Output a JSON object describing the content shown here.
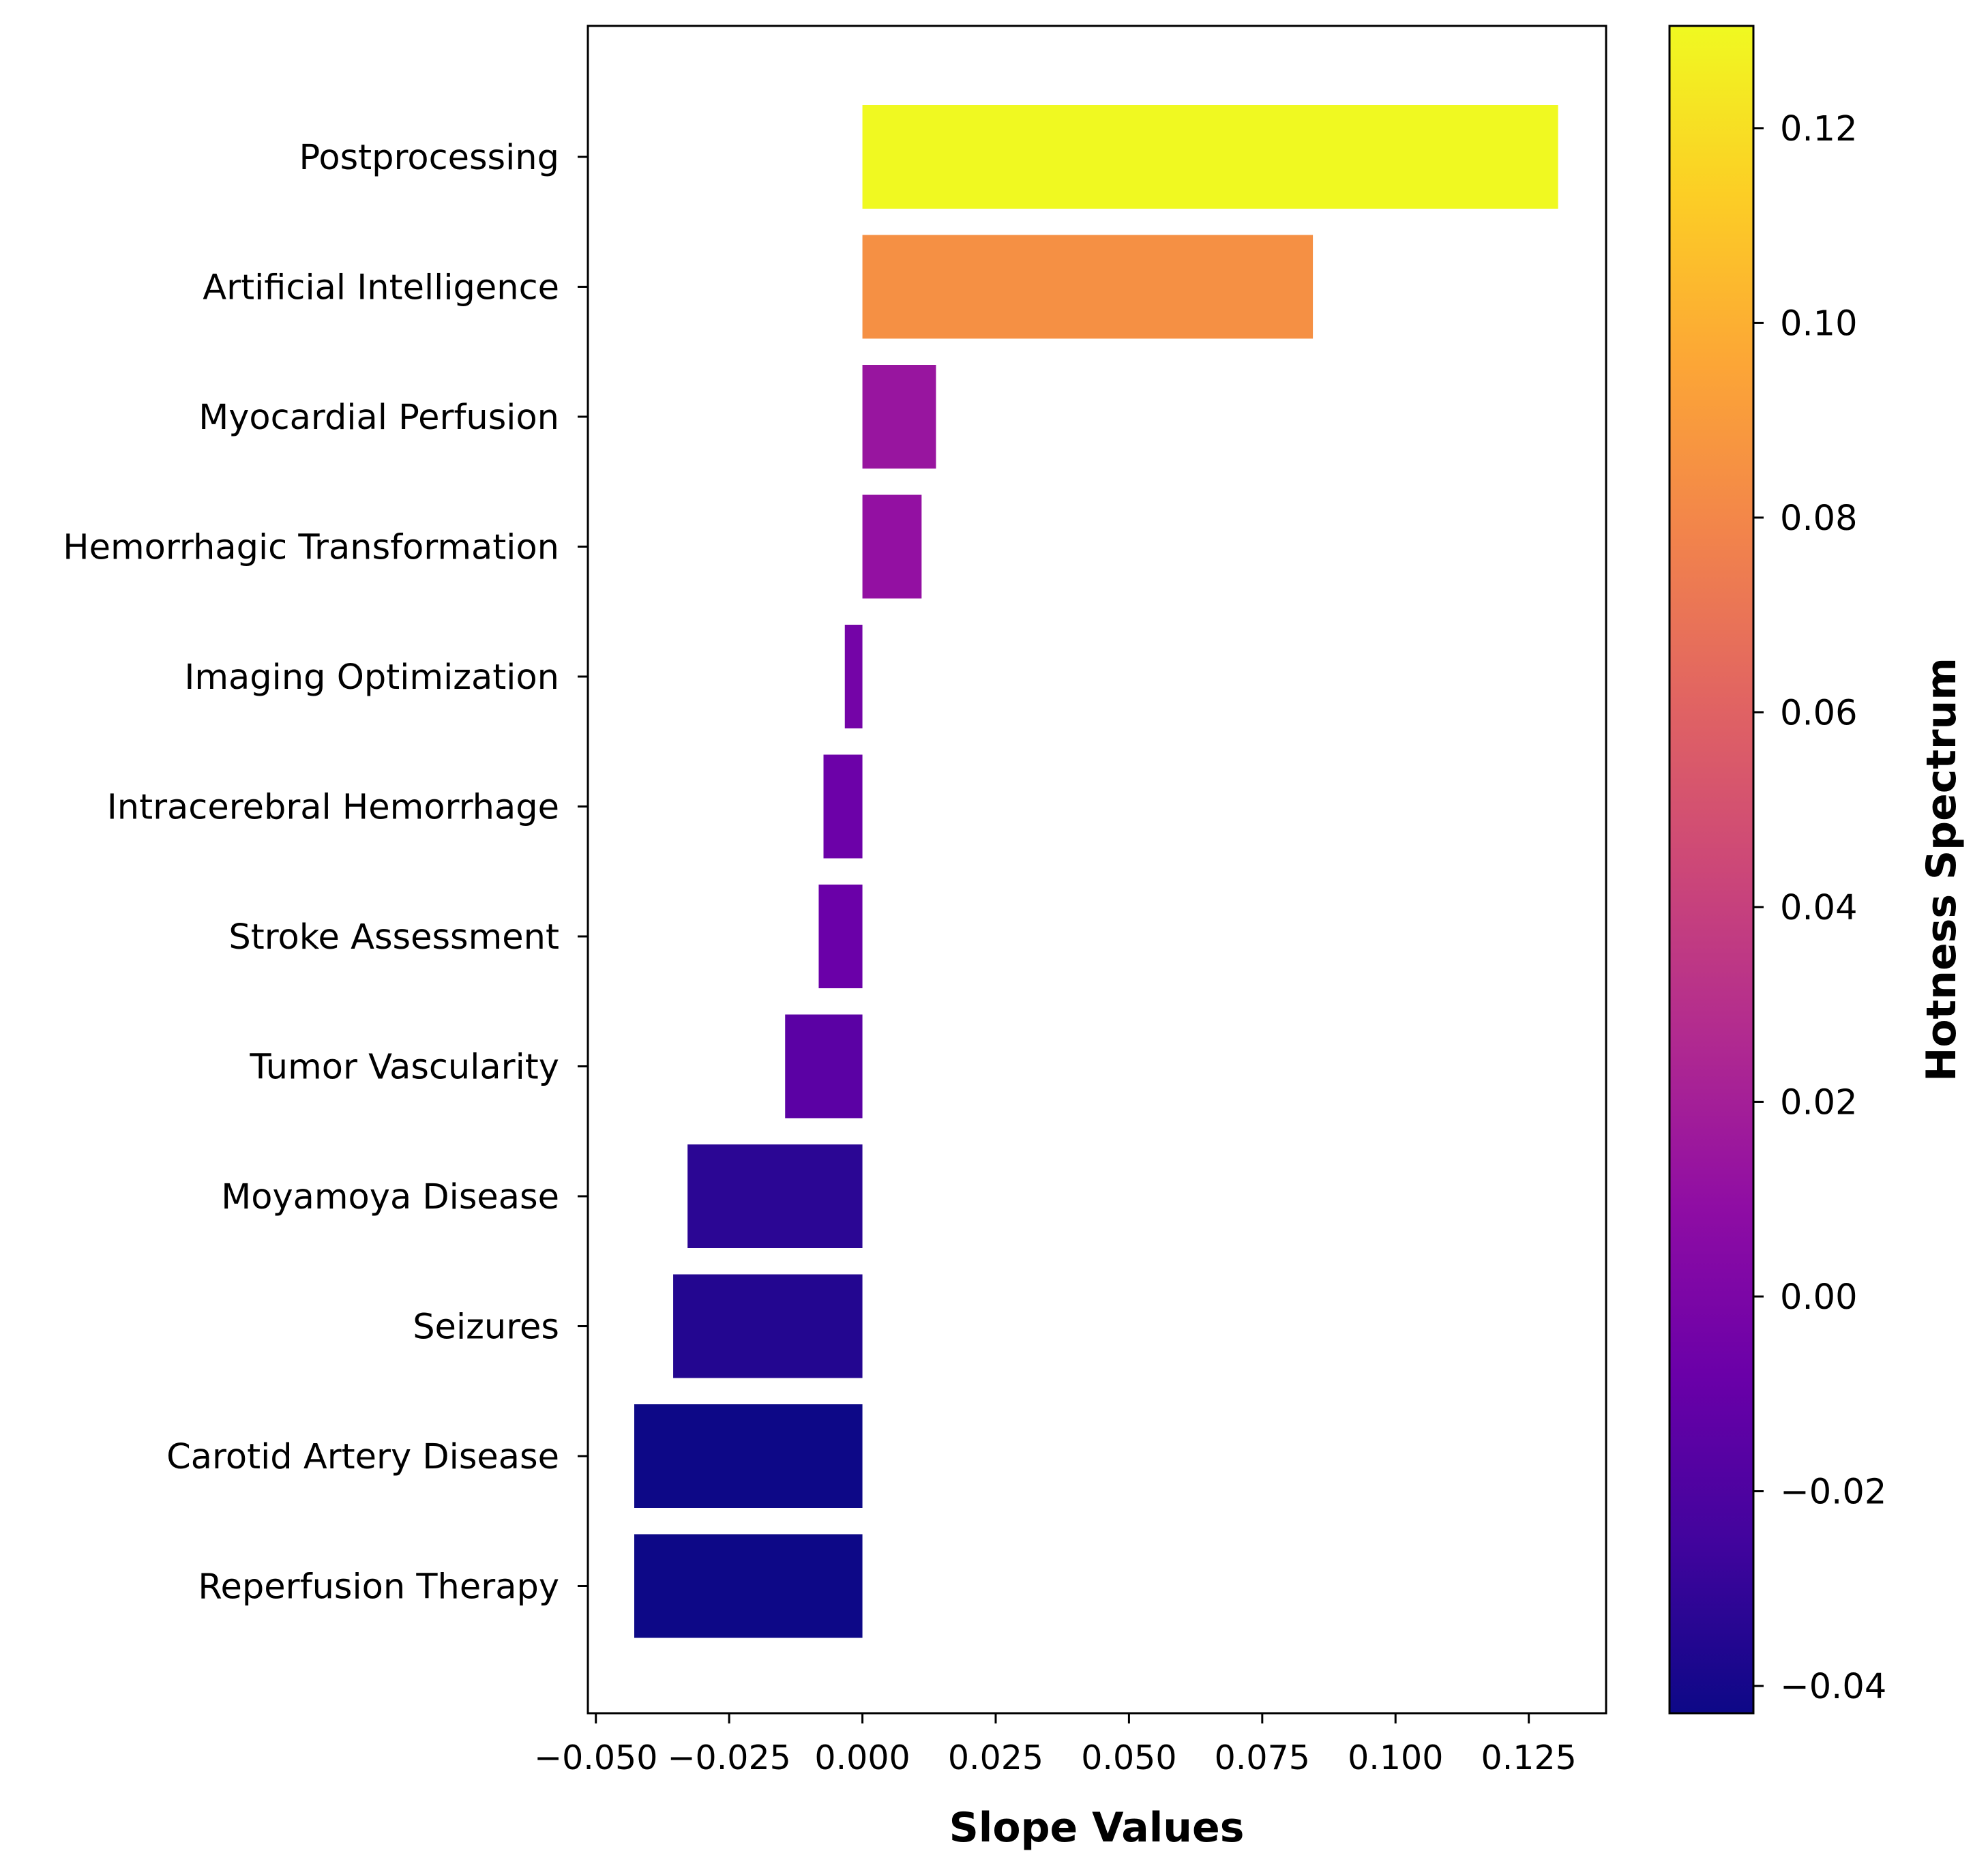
{
  "chart_data": {
    "type": "bar",
    "orientation": "horizontal",
    "categories": [
      "Postprocessing",
      "Artificial Intelligence",
      "Myocardial Perfusion",
      "Hemorrhagic Transformation",
      "Imaging Optimization",
      "Intracerebral Hemorrhage",
      "Stroke Assessment",
      "Tumor Vascularity",
      "Moyamoya Disease",
      "Seizures",
      "Carotid Artery Disease",
      "Reperfusion Therapy"
    ],
    "values": [
      0.1305,
      0.0845,
      0.0138,
      0.0111,
      -0.0033,
      -0.0073,
      -0.0082,
      -0.0145,
      -0.0328,
      -0.0355,
      -0.0428,
      -0.0428
    ],
    "title": "",
    "xlabel": "Slope Values",
    "ylabel": "",
    "xlim": [
      -0.0515,
      0.1395
    ],
    "xticks": [
      -0.05,
      -0.025,
      0.0,
      0.025,
      0.05,
      0.075,
      0.1,
      0.125
    ],
    "xtick_labels": [
      "−0.050",
      "−0.025",
      "0.000",
      "0.025",
      "0.050",
      "0.075",
      "0.100",
      "0.125"
    ],
    "grid": false,
    "colormap": "plasma",
    "colorbar": {
      "label": "Hotness Spectrum",
      "range": [
        -0.0428,
        0.1305
      ],
      "ticks": [
        -0.04,
        -0.02,
        0.0,
        0.02,
        0.04,
        0.06,
        0.08,
        0.1,
        0.12
      ],
      "tick_labels": [
        "−0.04",
        "−0.02",
        "0.00",
        "0.02",
        "0.04",
        "0.06",
        "0.08",
        "0.10",
        "0.12"
      ]
    }
  }
}
